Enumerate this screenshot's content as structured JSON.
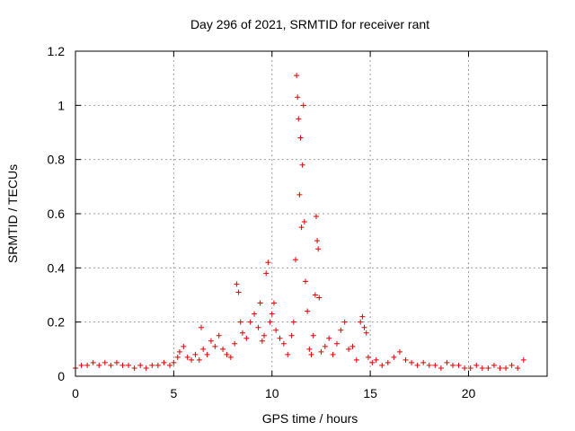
{
  "chart_data": {
    "type": "scatter",
    "title": "Day 296 of 2021, SRMTID for receiver rant",
    "xlabel": "GPS time / hours",
    "ylabel": "SRMTID / TECUs",
    "xlim": [
      0,
      24
    ],
    "ylim": [
      0,
      1.2
    ],
    "xticks": [
      0,
      5,
      10,
      15,
      20
    ],
    "xtick_labels": [
      "0",
      "5",
      "10",
      "15",
      "20"
    ],
    "yticks": [
      0,
      0.2,
      0.4,
      0.6,
      0.8,
      1.0,
      1.2
    ],
    "ytick_labels": [
      "0",
      "0.2",
      "0.4",
      "0.6",
      "0.8",
      "1",
      "1.2"
    ],
    "grid": true,
    "marker": "+",
    "color": "#e00000",
    "series": [
      {
        "name": "SRMTID",
        "x": [
          0.0,
          0.3,
          0.6,
          0.9,
          1.2,
          1.5,
          1.8,
          2.1,
          2.4,
          2.7,
          3.0,
          3.3,
          3.6,
          3.9,
          4.2,
          4.5,
          4.8,
          5.0,
          5.2,
          5.3,
          5.5,
          5.7,
          5.9,
          6.1,
          6.3,
          6.4,
          6.5,
          6.7,
          6.9,
          7.1,
          7.3,
          7.5,
          7.7,
          7.9,
          8.1,
          8.2,
          8.3,
          8.4,
          8.5,
          8.7,
          8.9,
          9.1,
          9.3,
          9.4,
          9.5,
          9.6,
          9.7,
          9.8,
          9.9,
          10.0,
          10.1,
          10.2,
          10.4,
          10.6,
          10.8,
          11.0,
          11.1,
          11.2,
          11.25,
          11.3,
          11.35,
          11.4,
          11.45,
          11.5,
          11.55,
          11.6,
          11.65,
          11.7,
          11.8,
          11.9,
          12.0,
          12.1,
          12.2,
          12.25,
          12.3,
          12.35,
          12.4,
          12.5,
          12.7,
          12.9,
          13.1,
          13.3,
          13.5,
          13.7,
          13.9,
          14.1,
          14.3,
          14.5,
          14.6,
          14.7,
          14.8,
          14.9,
          15.1,
          15.3,
          15.6,
          15.9,
          16.2,
          16.5,
          16.8,
          17.1,
          17.4,
          17.7,
          18.0,
          18.3,
          18.6,
          18.9,
          19.2,
          19.5,
          19.8,
          20.1,
          20.4,
          20.7,
          21.0,
          21.3,
          21.6,
          21.9,
          22.2,
          22.5,
          22.8
        ],
        "y": [
          0.03,
          0.04,
          0.04,
          0.05,
          0.04,
          0.05,
          0.04,
          0.05,
          0.04,
          0.04,
          0.03,
          0.04,
          0.03,
          0.04,
          0.04,
          0.05,
          0.04,
          0.05,
          0.07,
          0.09,
          0.11,
          0.07,
          0.06,
          0.08,
          0.06,
          0.18,
          0.1,
          0.08,
          0.13,
          0.11,
          0.15,
          0.1,
          0.08,
          0.07,
          0.12,
          0.34,
          0.31,
          0.2,
          0.16,
          0.14,
          0.2,
          0.23,
          0.18,
          0.27,
          0.13,
          0.15,
          0.38,
          0.42,
          0.2,
          0.23,
          0.27,
          0.17,
          0.14,
          0.12,
          0.08,
          0.15,
          0.2,
          0.43,
          1.11,
          1.03,
          0.95,
          0.67,
          0.88,
          0.55,
          0.78,
          1.0,
          0.57,
          0.35,
          0.24,
          0.1,
          0.08,
          0.15,
          0.3,
          0.59,
          0.5,
          0.47,
          0.29,
          0.09,
          0.11,
          0.14,
          0.08,
          0.12,
          0.17,
          0.2,
          0.1,
          0.11,
          0.06,
          0.2,
          0.22,
          0.18,
          0.16,
          0.07,
          0.05,
          0.06,
          0.04,
          0.05,
          0.07,
          0.09,
          0.06,
          0.05,
          0.04,
          0.05,
          0.04,
          0.04,
          0.03,
          0.05,
          0.04,
          0.04,
          0.03,
          0.03,
          0.04,
          0.03,
          0.03,
          0.04,
          0.03,
          0.03,
          0.04,
          0.03,
          0.06
        ]
      }
    ]
  }
}
